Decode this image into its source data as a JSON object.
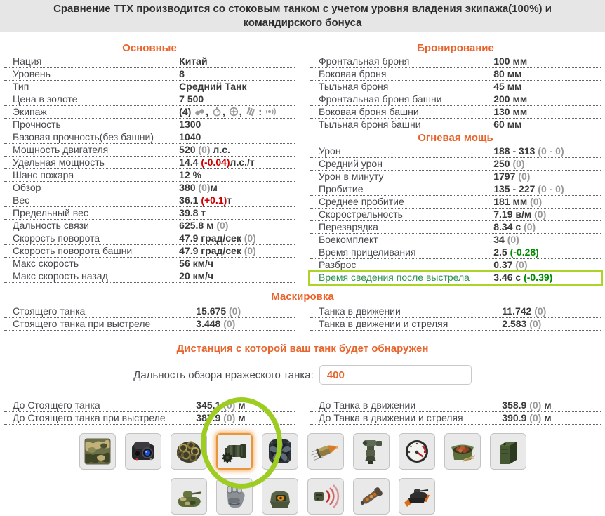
{
  "page": {
    "note": "Сравнение ТТХ производится со стоковым танком с учетом уровня владения экипажа(100%) и командирского бонуса"
  },
  "colors": {
    "accent_orange": "#e8642c",
    "delta_red": "#cc0000",
    "delta_green": "#008a00",
    "muted_gray": "#999999",
    "highlight_green": "#abd32a",
    "annotation_circle_green": "#9dcd23",
    "selected_tile_orange": "#e8963c"
  },
  "stats": {
    "main": {
      "title": "Основные",
      "rows": [
        {
          "label": "Нация",
          "parts": [
            [
              "Китай",
              "main"
            ]
          ]
        },
        {
          "label": "Уровень",
          "parts": [
            [
              "8",
              "main"
            ]
          ]
        },
        {
          "label": "Тип",
          "parts": [
            [
              "Средний Танк",
              "main"
            ]
          ]
        },
        {
          "label": "Цена в золоте",
          "parts": [
            [
              "7 500",
              "main"
            ]
          ]
        },
        {
          "label": "Экипаж",
          "parts": [
            [
              "(4) ",
              "main"
            ],
            [
              "commander",
              "crewicon"
            ],
            [
              ", ",
              "main"
            ],
            [
              "gunner",
              "crewicon"
            ],
            [
              ", ",
              "main"
            ],
            [
              "driver",
              "crewicon"
            ],
            [
              ", ",
              "main"
            ],
            [
              "loader",
              "crewicon"
            ],
            [
              " : ",
              "main"
            ],
            [
              "radio",
              "crewicon"
            ]
          ]
        },
        {
          "label": "Прочность",
          "parts": [
            [
              "1300",
              "main"
            ]
          ]
        },
        {
          "label": "Базовая прочность(без башни)",
          "parts": [
            [
              "1040",
              "main"
            ]
          ]
        },
        {
          "label": "Мощность двигателя",
          "parts": [
            [
              "520 ",
              "main"
            ],
            [
              "(0)",
              "muted"
            ],
            [
              " л.с.",
              "main"
            ]
          ]
        },
        {
          "label": "Удельная мощность",
          "parts": [
            [
              "14.4 ",
              "main"
            ],
            [
              "(-0.04)",
              "red"
            ],
            [
              "л.с./т",
              "main"
            ]
          ]
        },
        {
          "label": "Шанс пожара",
          "parts": [
            [
              "12 %",
              "main"
            ]
          ]
        },
        {
          "label": "Обзор",
          "parts": [
            [
              "380 ",
              "main"
            ],
            [
              "(0)",
              "muted"
            ],
            [
              "м",
              "main"
            ]
          ]
        },
        {
          "label": "Вес",
          "parts": [
            [
              "36.1 ",
              "main"
            ],
            [
              "(+0.1)",
              "red"
            ],
            [
              "т",
              "main"
            ]
          ]
        },
        {
          "label": "Предельный вес",
          "parts": [
            [
              "39.8 т",
              "main"
            ]
          ]
        },
        {
          "label": "Дальность связи",
          "parts": [
            [
              "625.8 м ",
              "main"
            ],
            [
              "(0)",
              "muted"
            ]
          ]
        },
        {
          "label": "Скорость поворота",
          "parts": [
            [
              "47.9 град/сек ",
              "main"
            ],
            [
              "(0)",
              "muted"
            ]
          ]
        },
        {
          "label": "Скорость поворота башни",
          "parts": [
            [
              "47.9 град/сек ",
              "main"
            ],
            [
              "(0)",
              "muted"
            ]
          ]
        },
        {
          "label": "Макс скорость",
          "parts": [
            [
              "56 км/ч",
              "main"
            ]
          ]
        },
        {
          "label": "Макс скорость назад",
          "parts": [
            [
              "20 км/ч",
              "main"
            ]
          ]
        }
      ]
    },
    "armor": {
      "title": "Бронирование",
      "rows": [
        {
          "label": "Фронтальная броня",
          "parts": [
            [
              "100 мм",
              "main"
            ]
          ]
        },
        {
          "label": "Боковая броня",
          "parts": [
            [
              "80 мм",
              "main"
            ]
          ]
        },
        {
          "label": "Тыльная броня",
          "parts": [
            [
              "45 мм",
              "main"
            ]
          ]
        },
        {
          "label": "Фронтальная броня башни",
          "parts": [
            [
              "200 мм",
              "main"
            ]
          ]
        },
        {
          "label": "Боковая броня башни",
          "parts": [
            [
              "130 мм",
              "main"
            ]
          ]
        },
        {
          "label": "Тыльная броня башни",
          "parts": [
            [
              "60 мм",
              "main"
            ]
          ]
        }
      ]
    },
    "firepower": {
      "title": "Огневая мощь",
      "rows": [
        {
          "label": "Урон",
          "parts": [
            [
              "188 - 313 ",
              "main"
            ],
            [
              "(0 - 0)",
              "muted"
            ]
          ]
        },
        {
          "label": "Средний урон",
          "parts": [
            [
              "250 ",
              "main"
            ],
            [
              "(0)",
              "muted"
            ]
          ]
        },
        {
          "label": "Урон в минуту",
          "parts": [
            [
              "1797 ",
              "main"
            ],
            [
              "(0)",
              "muted"
            ]
          ]
        },
        {
          "label": "Пробитие",
          "parts": [
            [
              "135 - 227 ",
              "main"
            ],
            [
              "(0 - 0)",
              "muted"
            ]
          ]
        },
        {
          "label": "Среднее пробитие",
          "parts": [
            [
              "181 мм ",
              "main"
            ],
            [
              "(0)",
              "muted"
            ]
          ]
        },
        {
          "label": "Скорострельность",
          "parts": [
            [
              "7.19 в/м ",
              "main"
            ],
            [
              "(0)",
              "muted"
            ]
          ]
        },
        {
          "label": "Перезарядка",
          "parts": [
            [
              "8.34 с ",
              "main"
            ],
            [
              "(0)",
              "muted"
            ]
          ]
        },
        {
          "label": "Боекомплект",
          "parts": [
            [
              "34 ",
              "main"
            ],
            [
              "(0)",
              "muted"
            ]
          ]
        },
        {
          "label": "Время прицеливания",
          "parts": [
            [
              "2.5 ",
              "main"
            ],
            [
              "(-0.28)",
              "green"
            ]
          ]
        },
        {
          "label": "Разброс",
          "parts": [
            [
              "0.37 ",
              "main"
            ],
            [
              "(0)",
              "muted"
            ]
          ]
        },
        {
          "label": "Время сведения после выстрела",
          "parts": [
            [
              "3.46 с ",
              "main"
            ],
            [
              "(-0.39)",
              "green"
            ]
          ],
          "highlight": true
        }
      ]
    }
  },
  "camo": {
    "title": "Маскировка",
    "left_rows": [
      {
        "label": "Стоящего танка",
        "parts": [
          [
            "15.675 ",
            "main"
          ],
          [
            "(0)",
            "muted"
          ]
        ]
      },
      {
        "label": "Стоящего танка при выстреле",
        "parts": [
          [
            "3.448 ",
            "main"
          ],
          [
            "(0)",
            "muted"
          ]
        ]
      }
    ],
    "right_rows": [
      {
        "label": "Танка в движении",
        "parts": [
          [
            "11.742 ",
            "main"
          ],
          [
            "(0)",
            "muted"
          ]
        ]
      },
      {
        "label": "Танка в движении и стреляя",
        "parts": [
          [
            "2.583 ",
            "main"
          ],
          [
            "(0)",
            "muted"
          ]
        ]
      }
    ]
  },
  "detection": {
    "title": "Дистанция с которой ваш танк будет обнаружен",
    "input_label": "Дальность обзора вражеского танка:",
    "input_value": "400",
    "left_rows": [
      {
        "label": "До Стоящего танка",
        "parts": [
          [
            "345.1 ",
            "main"
          ],
          [
            "(0)",
            "muted"
          ],
          [
            " м",
            "main"
          ]
        ]
      },
      {
        "label": "До Стоящего танка при выстреле",
        "parts": [
          [
            "387.9 ",
            "main"
          ],
          [
            "(0)",
            "muted"
          ],
          [
            " м",
            "main"
          ]
        ]
      }
    ],
    "right_rows": [
      {
        "label": "До Танка в движении",
        "parts": [
          [
            "358.9 ",
            "main"
          ],
          [
            "(0)",
            "muted"
          ],
          [
            " м",
            "main"
          ]
        ]
      },
      {
        "label": "До Танка в движении и стреляя",
        "parts": [
          [
            "390.9 ",
            "main"
          ],
          [
            "(0)",
            "muted"
          ],
          [
            " м",
            "main"
          ]
        ]
      }
    ]
  },
  "equipment": {
    "row1": [
      {
        "icon": "camo-net"
      },
      {
        "icon": "coated-optics"
      },
      {
        "icon": "torsion-coils"
      },
      {
        "icon": "ventilation-motor",
        "selected": true
      },
      {
        "icon": "fan-cover"
      },
      {
        "icon": "shell-round"
      },
      {
        "icon": "gun-laying-drive"
      },
      {
        "icon": "gauge-dial"
      },
      {
        "icon": "rations-tin"
      },
      {
        "icon": "fuel-canister"
      }
    ],
    "row2": [
      {
        "icon": "camo-tank"
      },
      {
        "icon": "armored-fist"
      },
      {
        "icon": "observation-device"
      },
      {
        "icon": "radio-signal"
      },
      {
        "icon": "exhaust-pipe"
      },
      {
        "icon": "speed-boost-tank"
      }
    ]
  }
}
